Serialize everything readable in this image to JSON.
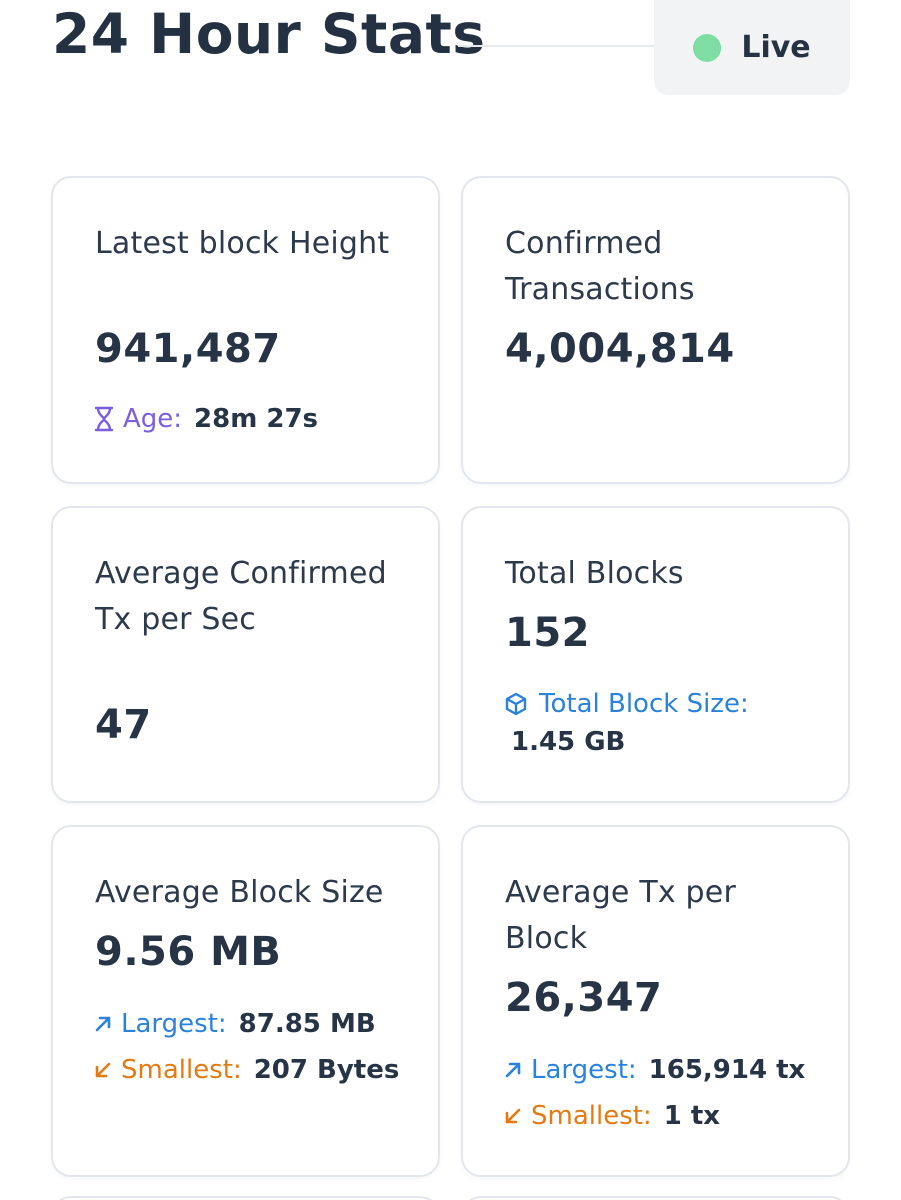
{
  "header": {
    "title": "24 Hour Stats",
    "live_label": "Live",
    "live_color": "#7fdca2"
  },
  "cards": {
    "latest_block": {
      "label": "Latest block Height",
      "value": "941,487",
      "age_label": "Age:",
      "age_value": "28m 27s",
      "age_icon": "hourglass-icon"
    },
    "confirmed_tx": {
      "label": "Confirmed Transactions",
      "value": "4,004,814"
    },
    "avg_tx_sec": {
      "label": "Average Confirmed Tx per Sec",
      "value": "47"
    },
    "total_blocks": {
      "label": "Total Blocks",
      "value": "152",
      "size_label": "Total Block Size:",
      "size_value": "1.45 GB",
      "size_icon": "cube-icon"
    },
    "avg_block_size": {
      "label": "Average Block Size",
      "value": "9.56 MB",
      "largest_label": "Largest:",
      "largest_value": "87.85 MB",
      "smallest_label": "Smallest:",
      "smallest_value": "207 Bytes"
    },
    "avg_tx_block": {
      "label": "Average Tx per Block",
      "value": "26,347",
      "largest_label": "Largest:",
      "largest_value": "165,914 tx",
      "smallest_label": "Smallest:",
      "smallest_value": "1 tx"
    }
  },
  "colors": {
    "accent_purple": "#7b5fe0",
    "accent_blue": "#2b82dc",
    "accent_orange": "#e57a12",
    "text_dark": "#253244"
  }
}
